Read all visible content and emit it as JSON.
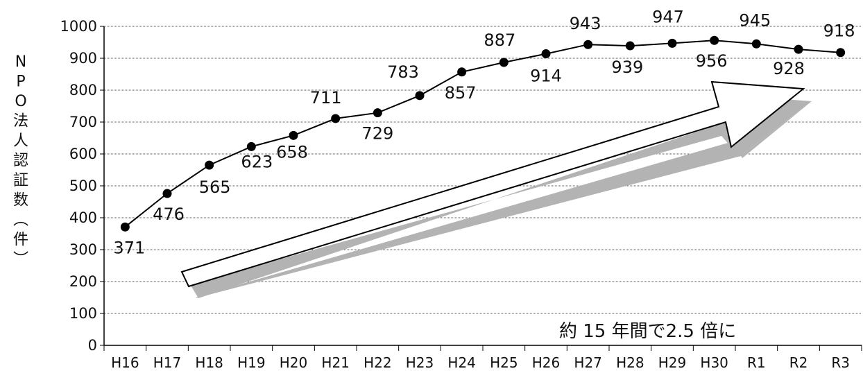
{
  "chart_data": {
    "type": "line",
    "categories": [
      "H16",
      "H17",
      "H18",
      "H19",
      "H20",
      "H21",
      "H22",
      "H23",
      "H24",
      "H25",
      "H26",
      "H27",
      "H28",
      "H29",
      "H30",
      "R1",
      "R2",
      "R3"
    ],
    "values": [
      371,
      476,
      565,
      623,
      658,
      711,
      729,
      783,
      857,
      887,
      914,
      943,
      939,
      947,
      956,
      945,
      928,
      918
    ],
    "ylabel": "NPO法人認証数（件）",
    "ylim": [
      0,
      1000
    ],
    "yticks": [
      0,
      100,
      200,
      300,
      400,
      500,
      600,
      700,
      800,
      900,
      1000
    ],
    "annotation": "約 15 年間で2.5 倍に",
    "grid": true,
    "legend": "none",
    "line_color": "#000000",
    "marker_color": "#000000"
  }
}
